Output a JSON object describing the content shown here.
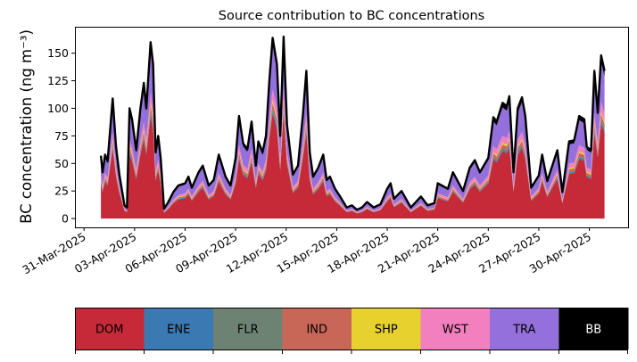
{
  "chart_data": {
    "type": "area",
    "stacked": true,
    "title": "Source contribution to BC concentrations",
    "xlabel": "",
    "ylabel": "BC concentration (ng m⁻³)",
    "ylim": [
      -8,
      174
    ],
    "yticks": [
      0,
      25,
      50,
      75,
      100,
      125,
      150
    ],
    "x_origin": "2025-04-01",
    "x_units": "days since 2025-04-01",
    "xlim_days": [
      -1.54,
      31.3
    ],
    "xtick_days": [
      -1,
      2,
      5,
      8,
      11,
      14,
      17,
      20,
      23,
      26,
      29
    ],
    "xtick_labels": [
      "31-Mar-2025",
      "03-Apr-2025",
      "06-Apr-2025",
      "09-Apr-2025",
      "12-Apr-2025",
      "15-Apr-2025",
      "18-Apr-2025",
      "21-Apr-2025",
      "24-Apr-2025",
      "27-Apr-2025",
      "30-Apr-2025"
    ],
    "x": [
      0,
      0.1,
      0.25,
      0.4,
      0.7,
      0.9,
      1.1,
      1.4,
      1.55,
      1.7,
      1.85,
      2.1,
      2.35,
      2.55,
      2.7,
      2.95,
      3.1,
      3.25,
      3.4,
      3.55,
      3.75,
      4.0,
      4.3,
      4.6,
      5.0,
      5.2,
      5.4,
      5.8,
      6.05,
      6.4,
      6.7,
      7.0,
      7.4,
      7.7,
      8.0,
      8.2,
      8.45,
      8.7,
      8.95,
      9.2,
      9.35,
      9.6,
      9.8,
      10.0,
      10.2,
      10.45,
      10.65,
      10.85,
      11.05,
      11.4,
      11.7,
      12.0,
      12.2,
      12.4,
      12.6,
      12.9,
      13.2,
      13.4,
      13.6,
      13.9,
      14.2,
      14.6,
      14.9,
      15.2,
      15.5,
      15.8,
      16.2,
      16.6,
      17.0,
      17.2,
      17.4,
      17.85,
      18.4,
      19.0,
      19.4,
      19.8,
      20.0,
      20.6,
      20.9,
      21.5,
      21.9,
      22.2,
      22.5,
      23.0,
      23.3,
      23.5,
      23.85,
      24.1,
      24.25,
      24.5,
      24.75,
      25.0,
      25.2,
      25.55,
      26.0,
      26.2,
      26.5,
      27.1,
      27.4,
      27.8,
      28.1,
      28.4,
      28.7,
      28.85,
      29.1,
      29.3,
      29.5,
      29.7,
      29.9
    ],
    "total": [
      57,
      42,
      58,
      52,
      109,
      65,
      40,
      12,
      10,
      100,
      90,
      62,
      100,
      123,
      100,
      160,
      140,
      60,
      75,
      55,
      9,
      15,
      24,
      30,
      32,
      38,
      28,
      42,
      48,
      30,
      35,
      58,
      38,
      30,
      55,
      93,
      68,
      63,
      88,
      48,
      70,
      60,
      75,
      125,
      164,
      140,
      75,
      165,
      85,
      40,
      48,
      95,
      134,
      60,
      38,
      46,
      58,
      35,
      38,
      27,
      20,
      10,
      12,
      8,
      10,
      15,
      10,
      13,
      27,
      32,
      18,
      25,
      10,
      20,
      12,
      14,
      32,
      27,
      42,
      25,
      46,
      53,
      42,
      55,
      92,
      88,
      105,
      102,
      111,
      42,
      100,
      110,
      93,
      28,
      39,
      58,
      34,
      62,
      24,
      70,
      71,
      93,
      90,
      65,
      62,
      134,
      96,
      148,
      134
    ],
    "series": [
      {
        "name": "DOM",
        "color": "#c62a39",
        "share": 0.58
      },
      {
        "name": "ENE",
        "color": "#3a79b2",
        "share": 0.015
      },
      {
        "name": "FLR",
        "color": "#6e8273",
        "share": 0.015
      },
      {
        "name": "IND",
        "color": "#c86658",
        "share": 0.03
      },
      {
        "name": "SHP",
        "color": "#e6d12e",
        "share": 0.015
      },
      {
        "name": "WST",
        "color": "#f380be",
        "share": 0.06
      },
      {
        "name": "TRA",
        "color": "#9370db",
        "share": 0.245
      },
      {
        "name": "BB",
        "color": "#000000",
        "share": 0.04
      }
    ],
    "legend": {
      "type": "colorbar",
      "placement": "bottom"
    }
  }
}
